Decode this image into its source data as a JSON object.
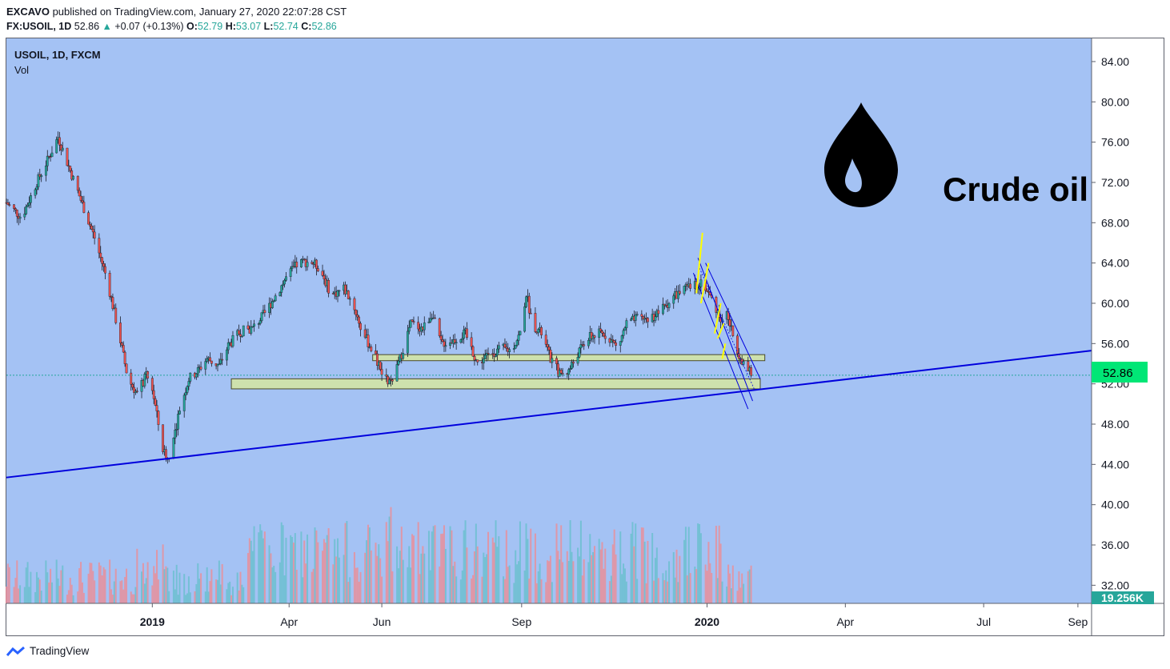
{
  "header": {
    "publisher": "EXCAVO",
    "published_text": "published on TradingView.com, January 27, 2020 22:07:28 CST",
    "symbol": "FX:USOIL, 1D",
    "last": "52.86",
    "change": "+0.07 (+0.13%)",
    "o_label": "O:",
    "o": "52.79",
    "h_label": "H:",
    "h": "53.07",
    "l_label": "L:",
    "l": "52.74",
    "c_label": "C:",
    "c": "52.86"
  },
  "branding": {
    "logo_text": "TradingView"
  },
  "colors": {
    "plot_bg": "#a4c2f4",
    "candle_up": "#26a69a",
    "candle_down": "#ef5350",
    "trendline": "#0000dd",
    "zone_fill": "#d6e6a0",
    "price_tag": "#00e676",
    "channel_mark": "#ffff00"
  },
  "chart_data": {
    "type": "candlestick",
    "title": "USOIL, 1D, FXCM",
    "subtitle": "Vol",
    "annotation": "Crude oil",
    "y_axis": {
      "ylim": [
        30.2,
        86.3
      ],
      "ticks": [
        "84.00",
        "80.00",
        "76.00",
        "72.00",
        "68.00",
        "64.00",
        "60.00",
        "56.00",
        "52.00",
        "48.00",
        "44.00",
        "40.00",
        "36.00",
        "32.00"
      ]
    },
    "last_price_tag": "52.86",
    "volume_tag": "19.256K",
    "x_axis": {
      "labels": [
        {
          "text": "2019",
          "bold": true,
          "day": 0
        },
        {
          "text": "Apr",
          "bold": false,
          "day": 90
        },
        {
          "text": "Jun",
          "bold": false,
          "day": 151
        },
        {
          "text": "Sep",
          "bold": false,
          "day": 243
        },
        {
          "text": "2020",
          "bold": true,
          "day": 365
        },
        {
          "text": "Apr",
          "bold": false,
          "day": 456
        },
        {
          "text": "Jul",
          "bold": false,
          "day": 547
        },
        {
          "text": "Sep",
          "bold": false,
          "day": 609
        }
      ],
      "day_range": [
        -96,
        618
      ]
    },
    "price_path": [
      [
        -96,
        70.0
      ],
      [
        -86,
        68.5
      ],
      [
        -76,
        72.0
      ],
      [
        -68,
        74.5
      ],
      [
        -62,
        76.5
      ],
      [
        -56,
        74.0
      ],
      [
        -50,
        71.5
      ],
      [
        -44,
        69.0
      ],
      [
        -38,
        66.5
      ],
      [
        -30,
        62.5
      ],
      [
        -22,
        57.0
      ],
      [
        -16,
        52.5
      ],
      [
        -10,
        51.0
      ],
      [
        -4,
        52.8
      ],
      [
        0,
        51.5
      ],
      [
        4,
        48.0
      ],
      [
        7,
        45.5
      ],
      [
        10,
        44.5
      ],
      [
        14,
        46.5
      ],
      [
        18,
        49.5
      ],
      [
        24,
        52.5
      ],
      [
        30,
        53.3
      ],
      [
        36,
        54.5
      ],
      [
        44,
        53.8
      ],
      [
        50,
        55.8
      ],
      [
        58,
        57.2
      ],
      [
        66,
        57.5
      ],
      [
        74,
        59.0
      ],
      [
        82,
        61.0
      ],
      [
        88,
        62.5
      ],
      [
        96,
        64.0
      ],
      [
        104,
        64.2
      ],
      [
        110,
        63.5
      ],
      [
        118,
        60.8
      ],
      [
        126,
        61.5
      ],
      [
        132,
        60.0
      ],
      [
        138,
        57.2
      ],
      [
        146,
        55.0
      ],
      [
        152,
        52.5
      ],
      [
        158,
        52.0
      ],
      [
        164,
        55.0
      ],
      [
        170,
        58.0
      ],
      [
        178,
        57.5
      ],
      [
        184,
        59.0
      ],
      [
        190,
        56.0
      ],
      [
        198,
        56.3
      ],
      [
        206,
        57.0
      ],
      [
        214,
        54.0
      ],
      [
        222,
        55.0
      ],
      [
        230,
        55.5
      ],
      [
        236,
        55.3
      ],
      [
        242,
        57.0
      ],
      [
        246,
        61.0
      ],
      [
        250,
        58.0
      ],
      [
        256,
        57.0
      ],
      [
        262,
        54.5
      ],
      [
        268,
        53.0
      ],
      [
        274,
        53.3
      ],
      [
        280,
        55.0
      ],
      [
        286,
        56.5
      ],
      [
        294,
        57.0
      ],
      [
        300,
        56.8
      ],
      [
        306,
        55.5
      ],
      [
        312,
        58.0
      ],
      [
        320,
        58.5
      ],
      [
        328,
        58.5
      ],
      [
        336,
        59.5
      ],
      [
        344,
        60.8
      ],
      [
        352,
        61.5
      ],
      [
        358,
        61.8
      ],
      [
        362,
        62.3
      ],
      [
        366,
        61.0
      ],
      [
        370,
        59.8
      ],
      [
        374,
        58.5
      ],
      [
        378,
        59.0
      ],
      [
        382,
        56.8
      ],
      [
        386,
        55.0
      ],
      [
        390,
        53.8
      ],
      [
        394,
        52.9
      ]
    ],
    "volume_series_note": "daily volume bars, up=teal down=red",
    "levels": {
      "support_zone_1": {
        "day_from": 145,
        "day_to": 403,
        "low": 54.3,
        "high": 54.9
      },
      "support_zone_2": {
        "day_from": 52,
        "day_to": 400,
        "low": 51.5,
        "high": 52.5
      },
      "long_trendline": {
        "from": [
          -96,
          42.7
        ],
        "to": [
          618,
          55.3
        ]
      },
      "channel": {
        "from_day": 358,
        "to_day": 400
      }
    }
  }
}
